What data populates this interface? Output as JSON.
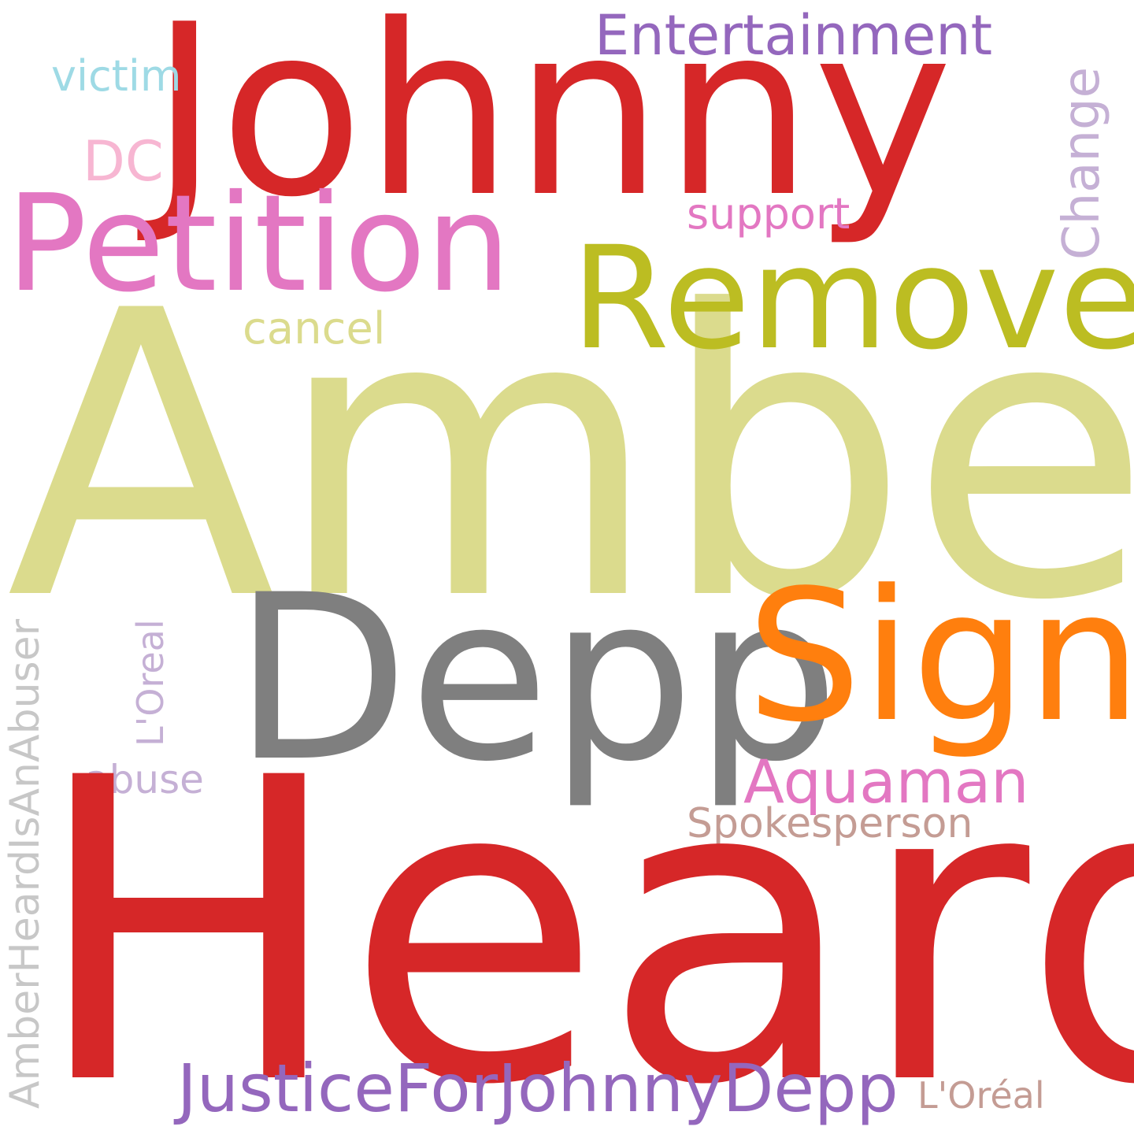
{
  "word_cloud": {
    "words": [
      {
        "text": "Amber",
        "color": "#dbdb8d"
      },
      {
        "text": "Heard",
        "color": "#d62728"
      },
      {
        "text": "Johnny",
        "color": "#d62728"
      },
      {
        "text": "Depp",
        "color": "#7f7f7f"
      },
      {
        "text": "Sign",
        "color": "#ff7f0e"
      },
      {
        "text": "Remove",
        "color": "#bcbd22"
      },
      {
        "text": "Petition",
        "color": "#e377c2"
      },
      {
        "text": "JusticeForJohnnyDepp",
        "color": "#9467bd"
      },
      {
        "text": "Entertainment",
        "color": "#9467bd"
      },
      {
        "text": "Aquaman",
        "color": "#e377c2"
      },
      {
        "text": "AmberHeardIsAnAbuser",
        "color": "#c7c7c7"
      },
      {
        "text": "Change",
        "color": "#c5b0d5"
      },
      {
        "text": "DC",
        "color": "#f7b6d2"
      },
      {
        "text": "victim",
        "color": "#9edae5"
      },
      {
        "text": "support",
        "color": "#e377c2"
      },
      {
        "text": "cancel",
        "color": "#dbdb8d"
      },
      {
        "text": "L'Oreal",
        "color": "#c5b0d5"
      },
      {
        "text": "abuse",
        "color": "#c5b0d5"
      },
      {
        "text": "Spokesperson",
        "color": "#c49c94"
      },
      {
        "text": "L'Oréal",
        "color": "#c49c94"
      }
    ]
  }
}
